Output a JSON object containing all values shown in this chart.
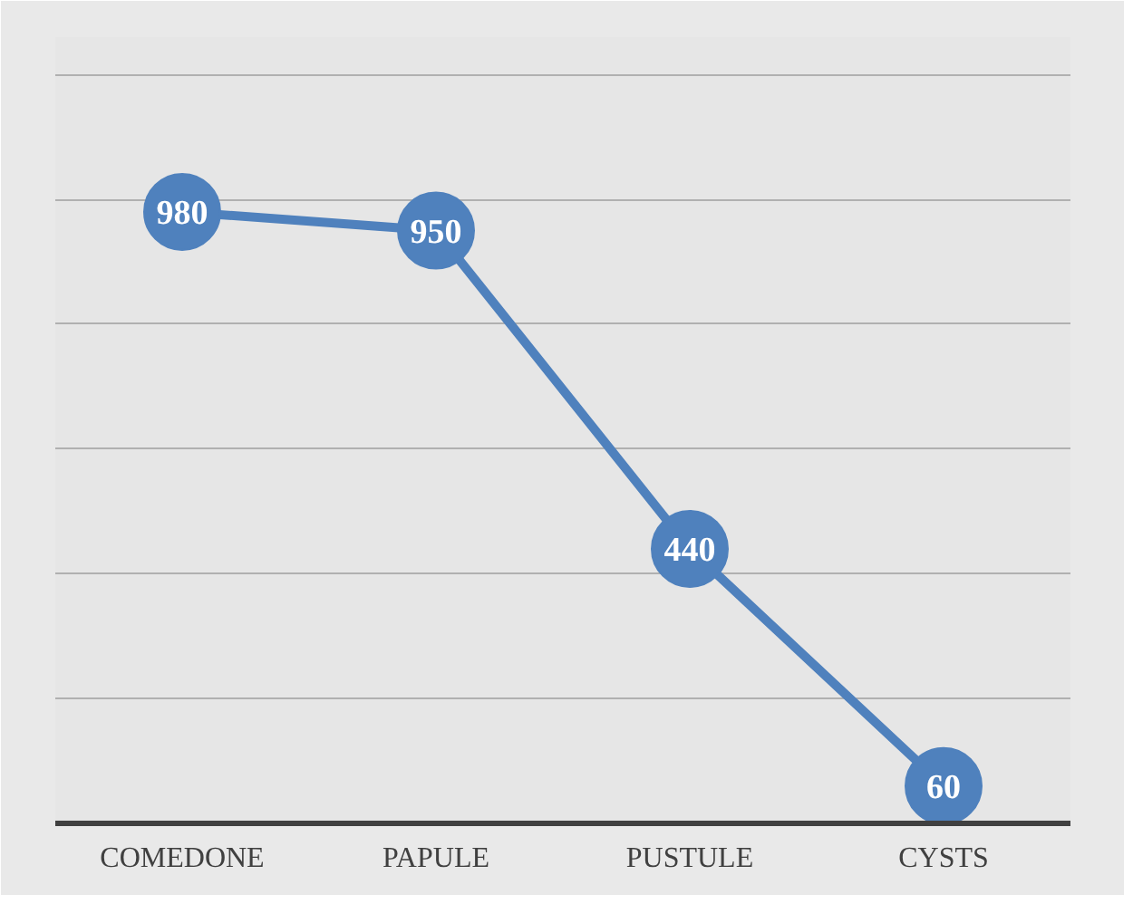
{
  "chart_data": {
    "type": "line",
    "categories": [
      "COMEDONE",
      "PAPULE",
      "PUSTULE",
      "CYSTS"
    ],
    "series": [
      {
        "color": "#4f81bd",
        "values": [
          980,
          950,
          440,
          60
        ]
      }
    ],
    "ylim": [
      0,
      1260
    ],
    "yticks": [
      {
        "value": 0,
        "label": null
      },
      {
        "value": 200,
        "label": null
      },
      {
        "value": 400,
        "label": null
      },
      {
        "value": 600,
        "label": null
      },
      {
        "value": 800,
        "label": null
      },
      {
        "value": 1000,
        "label": null
      },
      {
        "value": 1200,
        "label": null
      }
    ],
    "tick_labels": "x",
    "grid": "y",
    "marker": "circle",
    "data_labels": true
  }
}
